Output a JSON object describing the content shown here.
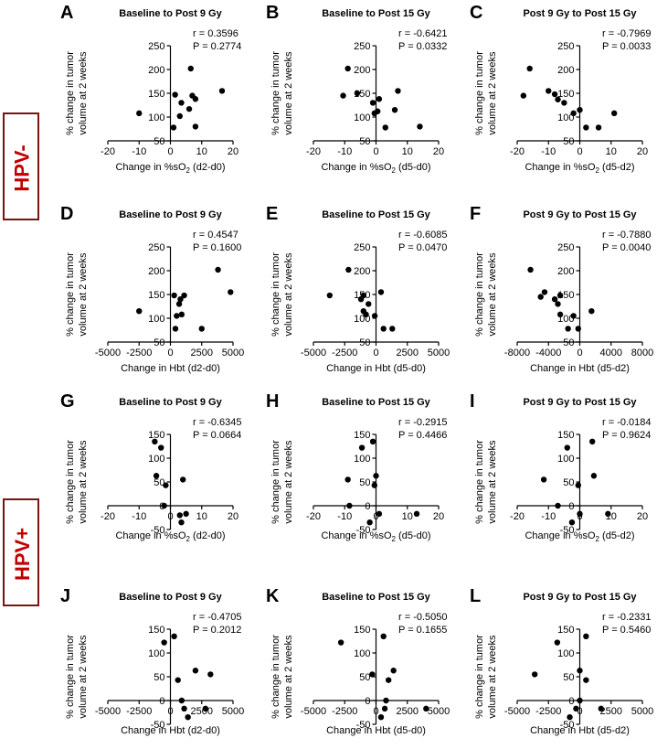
{
  "groups": [
    {
      "label": "HPV-"
    },
    {
      "label": "HPV+"
    }
  ],
  "chart_data": [
    {
      "letter": "A",
      "type": "scatter",
      "title": "Baseline to Post 9 Gy",
      "xlabel": [
        "Change in %sO",
        "2",
        " (d2-d0)"
      ],
      "ylabel": [
        "% change in tumor",
        "volume at 2 weeks"
      ],
      "xlim": [
        -20,
        20
      ],
      "xticks": [
        -20,
        -10,
        0,
        10,
        20
      ],
      "ylim": [
        50,
        250
      ],
      "yticks": [
        50,
        100,
        150,
        200,
        250
      ],
      "r_text": "r = 0.3596",
      "p_text": "P = 0.2774",
      "points": [
        [
          -10,
          108
        ],
        [
          1,
          78
        ],
        [
          1.5,
          147
        ],
        [
          3,
          102
        ],
        [
          3.5,
          130
        ],
        [
          6,
          117
        ],
        [
          6.5,
          202
        ],
        [
          7,
          145
        ],
        [
          8,
          138
        ],
        [
          8,
          80
        ],
        [
          16.5,
          155
        ]
      ]
    },
    {
      "letter": "B",
      "type": "scatter",
      "title": "Baseline to Post 15 Gy",
      "xlabel": [
        "Change in %sO",
        "2",
        " (d5-d0)"
      ],
      "ylabel": [
        "% change in tumor",
        "volume at 2 weeks"
      ],
      "xlim": [
        -20,
        20
      ],
      "xticks": [
        -20,
        -10,
        0,
        10,
        20
      ],
      "ylim": [
        50,
        250
      ],
      "yticks": [
        50,
        100,
        150,
        200,
        250
      ],
      "r_text": "r = -0.6421",
      "p_text": "P = 0.0332",
      "points": [
        [
          -9,
          202
        ],
        [
          -10.5,
          145
        ],
        [
          -6,
          150
        ],
        [
          -1,
          130
        ],
        [
          -0.5,
          108
        ],
        [
          0.5,
          112
        ],
        [
          1,
          138
        ],
        [
          3,
          78
        ],
        [
          6,
          115
        ],
        [
          7,
          155
        ],
        [
          14,
          80
        ]
      ]
    },
    {
      "letter": "C",
      "type": "scatter",
      "title": "Post 9 Gy to Post 15 Gy",
      "xlabel": [
        "Change in %sO",
        "2",
        " (d5-d2)"
      ],
      "ylabel": [
        "% change in tumor",
        "volume at 2 weeks"
      ],
      "xlim": [
        -20,
        20
      ],
      "xticks": [
        -20,
        -10,
        0,
        10,
        20
      ],
      "ylim": [
        50,
        250
      ],
      "yticks": [
        50,
        100,
        150,
        200,
        250
      ],
      "r_text": "r = -0.7969",
      "p_text": "P = 0.0033",
      "points": [
        [
          -16,
          202
        ],
        [
          -18,
          145
        ],
        [
          -10,
          155
        ],
        [
          -8,
          148
        ],
        [
          -7,
          137
        ],
        [
          -5,
          130
        ],
        [
          -2,
          108
        ],
        [
          0,
          115
        ],
        [
          2,
          78
        ],
        [
          6,
          78
        ],
        [
          11,
          108
        ]
      ]
    },
    {
      "letter": "D",
      "type": "scatter",
      "title": "Baseline to Post 9 Gy",
      "xlabel": [
        "Change in Hbt (d2-d0)"
      ],
      "ylabel": [
        "% change in tumor",
        "volume at 2 weeks"
      ],
      "xlim": [
        -5000,
        5000
      ],
      "xticks": [
        -5000,
        -2500,
        0,
        2500,
        5000
      ],
      "ylim": [
        50,
        250
      ],
      "yticks": [
        50,
        100,
        150,
        200,
        250
      ],
      "r_text": "r = 0.4547",
      "p_text": "P = 0.1600",
      "points": [
        [
          -2500,
          115
        ],
        [
          300,
          148
        ],
        [
          400,
          78
        ],
        [
          500,
          105
        ],
        [
          700,
          130
        ],
        [
          800,
          140
        ],
        [
          900,
          108
        ],
        [
          1100,
          148
        ],
        [
          2500,
          78
        ],
        [
          3800,
          202
        ],
        [
          4800,
          155
        ]
      ]
    },
    {
      "letter": "E",
      "type": "scatter",
      "title": "Baseline to Post 15 Gy",
      "xlabel": [
        "Change in Hbt (d5-d0)"
      ],
      "ylabel": [
        "% change in tumor",
        "volume at 2 weeks"
      ],
      "xlim": [
        -5000,
        5000
      ],
      "xticks": [
        -5000,
        -2500,
        0,
        2500,
        5000
      ],
      "ylim": [
        50,
        250
      ],
      "yticks": [
        50,
        100,
        150,
        200,
        250
      ],
      "r_text": "r = -0.6085",
      "p_text": "P = 0.0470",
      "points": [
        [
          -3700,
          148
        ],
        [
          -2200,
          202
        ],
        [
          -1200,
          140
        ],
        [
          -1000,
          115
        ],
        [
          -800,
          108
        ],
        [
          -600,
          130
        ],
        [
          -100,
          105
        ],
        [
          400,
          155
        ],
        [
          600,
          78
        ],
        [
          1300,
          78
        ],
        [
          -1000,
          148
        ]
      ]
    },
    {
      "letter": "F",
      "type": "scatter",
      "title": "Post 9 Gy to Post 15 Gy",
      "xlabel": [
        "Change in Hbt  (d5-d2)"
      ],
      "ylabel": [
        "% change in tumor",
        "volume at 2 weeks"
      ],
      "xlim": [
        -8000,
        8000
      ],
      "xticks": [
        -8000,
        -4000,
        0,
        4000,
        8000
      ],
      "ylim": [
        50,
        250
      ],
      "yticks": [
        50,
        100,
        150,
        200,
        250
      ],
      "r_text": "r = -0.7880",
      "p_text": "P = 0.0040",
      "points": [
        [
          -6300,
          202
        ],
        [
          -5000,
          145
        ],
        [
          -4500,
          155
        ],
        [
          -3200,
          140
        ],
        [
          -2800,
          130
        ],
        [
          -2500,
          148
        ],
        [
          -2500,
          108
        ],
        [
          -1500,
          78
        ],
        [
          -800,
          105
        ],
        [
          -200,
          78
        ],
        [
          1500,
          115
        ]
      ]
    },
    {
      "letter": "G",
      "type": "scatter",
      "title": "Baseline to Post 9 Gy",
      "xlabel": [
        "Change in %sO",
        "2",
        " (d2-d0)"
      ],
      "ylabel": [
        "% change in tumor",
        "volume at 2 weeks"
      ],
      "xlim": [
        -20,
        20
      ],
      "xticks": [
        -20,
        -10,
        0,
        10,
        20
      ],
      "ylim": [
        -50,
        150
      ],
      "yticks": [
        -50,
        0,
        50,
        100,
        150
      ],
      "r_text": "r = -0.6345",
      "p_text": "P = 0.0664",
      "points": [
        [
          -5,
          135
        ],
        [
          -3,
          122
        ],
        [
          -4.5,
          63
        ],
        [
          -1.5,
          43
        ],
        [
          -2,
          0
        ],
        [
          4,
          55
        ],
        [
          3,
          -20
        ],
        [
          5,
          -17
        ],
        [
          3.5,
          -35
        ]
      ]
    },
    {
      "letter": "H",
      "type": "scatter",
      "title": "Baseline to Post 15 Gy",
      "xlabel": [
        "Change in %sO",
        "2",
        " (d5-d0)"
      ],
      "ylabel": [
        "% change in tumor",
        "volume at 2 weeks"
      ],
      "xlim": [
        -20,
        20
      ],
      "xticks": [
        -20,
        -10,
        0,
        10,
        20
      ],
      "ylim": [
        -50,
        150
      ],
      "yticks": [
        -50,
        0,
        50,
        100,
        150
      ],
      "r_text": "r = -0.2915",
      "p_text": "P = 0.4466",
      "points": [
        [
          -4.5,
          122
        ],
        [
          -1,
          135
        ],
        [
          -9,
          55
        ],
        [
          0,
          63
        ],
        [
          -0.5,
          43
        ],
        [
          -8.5,
          0
        ],
        [
          -2,
          -35
        ],
        [
          1,
          -17
        ],
        [
          13,
          -17
        ]
      ]
    },
    {
      "letter": "I",
      "type": "scatter",
      "title": "Post 9 Gy to Post 15 Gy",
      "xlabel": [
        "Change in %sO",
        "2",
        " (d5-d2)"
      ],
      "ylabel": [
        "% change in tumor",
        "volume at 2 weeks"
      ],
      "xlim": [
        -20,
        20
      ],
      "xticks": [
        -20,
        -10,
        0,
        10,
        20
      ],
      "ylim": [
        -50,
        150
      ],
      "yticks": [
        -50,
        0,
        50,
        100,
        150
      ],
      "r_text": "r = -0.0184",
      "p_text": "P = 0.9624",
      "points": [
        [
          -4,
          122
        ],
        [
          4,
          135
        ],
        [
          -11.5,
          55
        ],
        [
          4.5,
          63
        ],
        [
          -0.5,
          43
        ],
        [
          -7,
          0
        ],
        [
          0,
          -17
        ],
        [
          9,
          -17
        ],
        [
          -2.5,
          -35
        ]
      ]
    },
    {
      "letter": "J",
      "type": "scatter",
      "title": "Baseline to Post 9 Gy",
      "xlabel": [
        "Change in Hbt (d2-d0)"
      ],
      "ylabel": [
        "% change in tumor",
        "volume at 2 weeks"
      ],
      "xlim": [
        -5000,
        5000
      ],
      "xticks": [
        -5000,
        -2500,
        0,
        2500,
        5000
      ],
      "ylim": [
        -50,
        150
      ],
      "yticks": [
        -50,
        0,
        50,
        100,
        150
      ],
      "r_text": "r = -0.4705",
      "p_text": "P = 0.2012",
      "points": [
        [
          -500,
          122
        ],
        [
          300,
          135
        ],
        [
          600,
          43
        ],
        [
          2000,
          63
        ],
        [
          3200,
          55
        ],
        [
          900,
          0
        ],
        [
          1100,
          -17
        ],
        [
          2800,
          -17
        ],
        [
          1400,
          -35
        ]
      ]
    },
    {
      "letter": "K",
      "type": "scatter",
      "title": "Baseline to Post 15 Gy",
      "xlabel": [
        "Change in Hbt (d5-d0)"
      ],
      "ylabel": [
        "% change in tumor",
        "volume at 2 weeks"
      ],
      "xlim": [
        -5000,
        5000
      ],
      "xticks": [
        -5000,
        -2500,
        0,
        2500,
        5000
      ],
      "ylim": [
        -50,
        150
      ],
      "yticks": [
        -50,
        0,
        50,
        100,
        150
      ],
      "r_text": "r = -0.5050",
      "p_text": "P = 0.1655",
      "points": [
        [
          -2800,
          122
        ],
        [
          600,
          135
        ],
        [
          -300,
          55
        ],
        [
          1400,
          63
        ],
        [
          1000,
          43
        ],
        [
          800,
          0
        ],
        [
          700,
          -17
        ],
        [
          4000,
          -17
        ],
        [
          400,
          -35
        ]
      ]
    },
    {
      "letter": "L",
      "type": "scatter",
      "title": "Post 9 Gy to Post 15 Gy",
      "xlabel": [
        "Change in Hbt (d5-d2)"
      ],
      "ylabel": [
        "% change in tumor",
        "volume at 2 weeks"
      ],
      "xlim": [
        -5000,
        5000
      ],
      "xticks": [
        -5000,
        -2500,
        0,
        2500,
        5000
      ],
      "ylim": [
        -50,
        150
      ],
      "yticks": [
        -50,
        0,
        50,
        100,
        150
      ],
      "r_text": "r = -0.2331",
      "p_text": "P = 0.5460",
      "points": [
        [
          -1800,
          122
        ],
        [
          500,
          135
        ],
        [
          -3600,
          55
        ],
        [
          0,
          63
        ],
        [
          500,
          43
        ],
        [
          0,
          0
        ],
        [
          -300,
          -17
        ],
        [
          1700,
          -17
        ],
        [
          -800,
          -35
        ]
      ]
    }
  ]
}
